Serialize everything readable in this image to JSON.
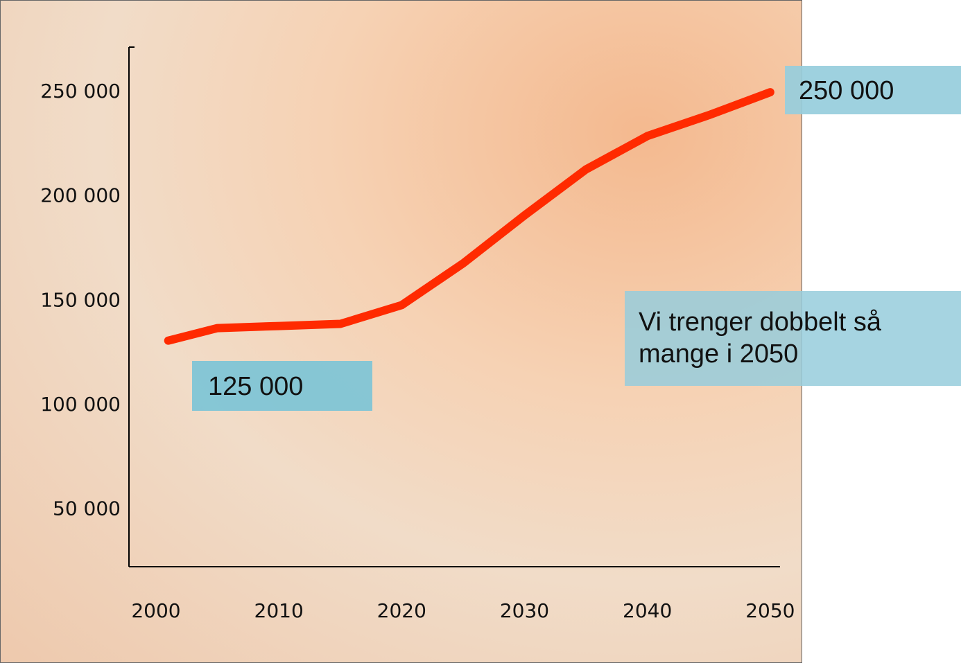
{
  "chart_data": {
    "type": "line",
    "x": [
      2001,
      2005,
      2010,
      2015,
      2020,
      2025,
      2030,
      2035,
      2040,
      2045,
      2050
    ],
    "series": [
      {
        "color": "#ff2a00",
        "values": [
          131000,
          137000,
          138000,
          139000,
          148000,
          168000,
          191000,
          213000,
          229000,
          239000,
          250000
        ]
      }
    ],
    "xlim": [
      1997.8,
      2050.8
    ],
    "xticks": [
      2000,
      2010,
      2020,
      2030,
      2040,
      2050
    ],
    "ylim": [
      22700,
      271600
    ],
    "yticks": [
      {
        "value": 50000,
        "label": "50 000"
      },
      {
        "value": 100000,
        "label": "100 000"
      },
      {
        "value": 150000,
        "label": "150 000"
      },
      {
        "value": 200000,
        "label": "200 000"
      },
      {
        "value": 250000,
        "label": "250 000"
      }
    ],
    "annotations": [
      "125 000",
      "250 000",
      "Vi trenger dobbelt så mange i 2050"
    ]
  }
}
